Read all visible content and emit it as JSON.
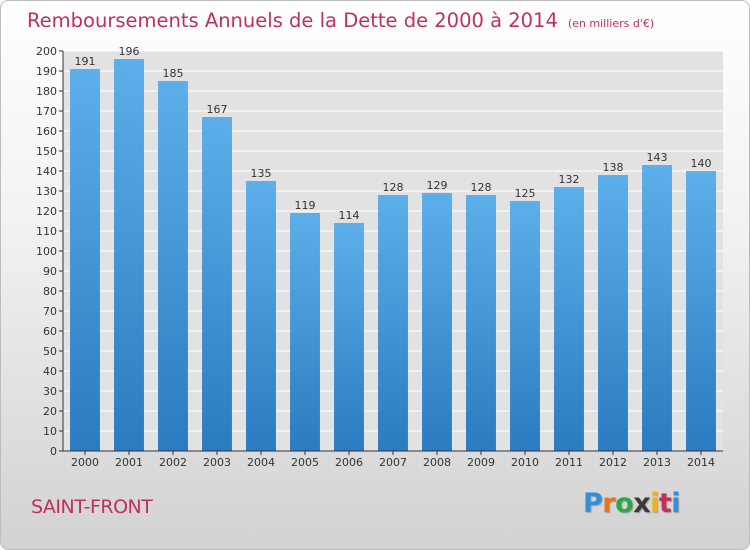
{
  "chart_data": {
    "type": "bar",
    "title": "Remboursements Annuels de la Dette de 2000 à 2014",
    "subtitle": "(en milliers d'€)",
    "categories": [
      "2000",
      "2001",
      "2002",
      "2003",
      "2004",
      "2005",
      "2006",
      "2007",
      "2008",
      "2009",
      "2010",
      "2011",
      "2012",
      "2013",
      "2014"
    ],
    "values": [
      191,
      196,
      185,
      167,
      135,
      119,
      114,
      128,
      129,
      128,
      125,
      132,
      138,
      143,
      140
    ],
    "xlabel": "",
    "ylabel": "",
    "ylim": [
      0,
      200
    ],
    "yticks": [
      0,
      10,
      20,
      30,
      40,
      50,
      60,
      70,
      80,
      90,
      100,
      110,
      120,
      130,
      140,
      150,
      160,
      170,
      180,
      190,
      200
    ],
    "grid": true,
    "legend": "none",
    "bar_color": "#4f9fdf"
  },
  "footer": {
    "place": "SAINT-FRONT",
    "logo": "Proxiti",
    "logo_colors": [
      "#2f8fd8",
      "#e8731c",
      "#2aa84a",
      "#3a3a3a",
      "#e8b51c",
      "#c0305a",
      "#2f8fd8"
    ]
  },
  "colors": {
    "title": "#c0305a",
    "grid": "#ffffff",
    "axis": "#333333"
  }
}
